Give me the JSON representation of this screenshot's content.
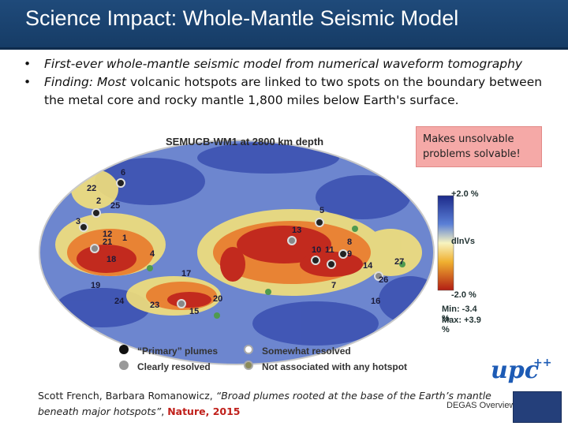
{
  "title": "Science Impact: Whole-Mantle Seismic Model",
  "bullets": [
    {
      "bullet": "•",
      "text": "First-ever whole-mantle seismic model from numerical waveform tomography"
    },
    {
      "bullet": "•",
      "prefix": "Finding: Most ",
      "text": "volcanic hotspots are linked to two spots on the boundary between the metal core and rocky mantle 1,800 miles below Earth's surface."
    }
  ],
  "map": {
    "title": "SEMUCB-WM1 at 2800 km depth",
    "scale_top": "+2.0 %",
    "scale_bottom": "-2.0 %",
    "axis_label": "dlnVs",
    "min_label": "Min: -3.4 %",
    "max_label": "Max: +3.9 %",
    "hotspot_numbers": [
      "6",
      "22",
      "2",
      "25",
      "5",
      "3",
      "12",
      "1",
      "21",
      "13",
      "8",
      "10",
      "11",
      "9",
      "4",
      "18",
      "17",
      "14",
      "27",
      "26",
      "19",
      "7",
      "20",
      "24",
      "23",
      "16",
      "15"
    ]
  },
  "legend": {
    "primary": "“Primary” plumes",
    "somewhat": "Somewhat resolved",
    "clearly": "Clearly resolved",
    "not_associated": "Not associated with any hotspot"
  },
  "callout": "Makes unsolvable problems solvable!",
  "citation": {
    "authors": "Scott French, Barbara Romanowicz, ",
    "paper_title": "“Broad plumes rooted at the base of the Earth’s mantle beneath major hotspots”",
    "sep": ", ",
    "journal": "Nature, 2015"
  },
  "footer": "DEGAS Overview",
  "logos": {
    "upc": "upc",
    "upc_sup": "++"
  },
  "colors": {
    "title_bar": "#1f4a7a",
    "callout": "#f5a9a7",
    "journal": "#c0201b",
    "map_blue": "#2a3d9c",
    "map_red": "#c22a1e",
    "map_yellow": "#f3e07a"
  }
}
